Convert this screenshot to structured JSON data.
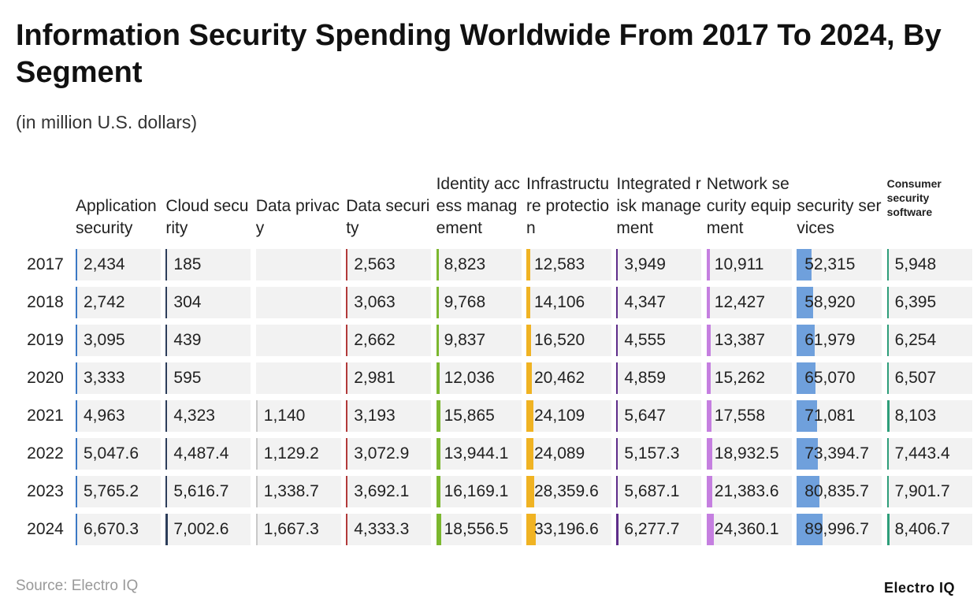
{
  "chart_data": {
    "type": "table-bars",
    "title": "Information Security Spending Worldwide From 2017 To 2024, By Segment",
    "subtitle": "(in million U.S. dollars)",
    "source": "Source: Electro IQ",
    "brand": "Electro IQ",
    "categories": [
      "2017",
      "2018",
      "2019",
      "2020",
      "2021",
      "2022",
      "2023",
      "2024"
    ],
    "series": [
      {
        "name": "Application security",
        "color": "#3b78c4",
        "values": [
          2434,
          2742,
          3095,
          3333,
          4963,
          5047.6,
          5765.2,
          6670.3
        ],
        "value_labels": [
          "2,434",
          "2,742",
          "3,095",
          "3,333",
          "4,963",
          "5,047.6",
          "5,765.2",
          "6,670.3"
        ]
      },
      {
        "name": "Cloud security",
        "color": "#2c3d5a",
        "values": [
          185,
          304,
          439,
          595,
          4323,
          4487.4,
          5616.7,
          7002.6
        ],
        "value_labels": [
          "185",
          "304",
          "439",
          "595",
          "4,323",
          "4,487.4",
          "5,616.7",
          "7,002.6"
        ]
      },
      {
        "name": "Data privacy",
        "color": "#c9c9c9",
        "values": [
          null,
          null,
          null,
          null,
          1140,
          1129.2,
          1338.7,
          1667.3
        ],
        "value_labels": [
          null,
          null,
          null,
          null,
          "1,140",
          "1,129.2",
          "1,338.7",
          "1,667.3"
        ]
      },
      {
        "name": "Data security",
        "color": "#b23a3a",
        "values": [
          2563,
          3063,
          2662,
          2981,
          3193,
          3072.9,
          3692.1,
          4333.3
        ],
        "value_labels": [
          "2,563",
          "3,063",
          "2,662",
          "2,981",
          "3,193",
          "3,072.9",
          "3,692.1",
          "4,333.3"
        ]
      },
      {
        "name": "Identity access management",
        "color": "#7cb82f",
        "values": [
          8823,
          9768,
          9837,
          12036,
          15865,
          13944.1,
          16169.1,
          18556.5
        ],
        "value_labels": [
          "8,823",
          "9,768",
          "9,837",
          "12,036",
          "15,865",
          "13,944.1",
          "16,169.1",
          "18,556.5"
        ]
      },
      {
        "name": "Infrastructure protection",
        "color": "#f0b323",
        "values": [
          12583,
          14106,
          16520,
          20462,
          24109,
          24089,
          28359.6,
          33196.6
        ],
        "value_labels": [
          "12,583",
          "14,106",
          "16,520",
          "20,462",
          "24,109",
          "24,089",
          "28,359.6",
          "33,196.6"
        ]
      },
      {
        "name": "Integrated risk management",
        "color": "#5e2d8a",
        "values": [
          3949,
          4347,
          4555,
          4859,
          5647,
          5157.3,
          5687.1,
          6277.7
        ],
        "value_labels": [
          "3,949",
          "4,347",
          "4,555",
          "4,859",
          "5,647",
          "5,157.3",
          "5,687.1",
          "6,277.7"
        ]
      },
      {
        "name": "Network security equipment",
        "color": "#c57fe0",
        "values": [
          10911,
          12427,
          13387,
          15262,
          17558,
          18932.5,
          21383.6,
          24360.1
        ],
        "value_labels": [
          "10,911",
          "12,427",
          "13,387",
          "15,262",
          "17,558",
          "18,932.5",
          "21,383.6",
          "24,360.1"
        ]
      },
      {
        "name": "security services",
        "color": "#6fa0dc",
        "values": [
          52315,
          58920,
          61979,
          65070,
          71081,
          73394.7,
          80835.7,
          89996.7
        ],
        "value_labels": [
          "52,315",
          "58,920",
          "61,979",
          "65,070",
          "71,081",
          "73,394.7",
          "80,835.7",
          "89,996.7"
        ]
      },
      {
        "name": "Consumer security software",
        "color": "#2e9e7a",
        "values": [
          5948,
          6395,
          6254,
          6507,
          8103,
          7443.4,
          7901.7,
          8406.7
        ],
        "value_labels": [
          "5,948",
          "6,395",
          "6,254",
          "6,507",
          "8,103",
          "7,443.4",
          "7,901.7",
          "8,406.7"
        ]
      }
    ]
  }
}
